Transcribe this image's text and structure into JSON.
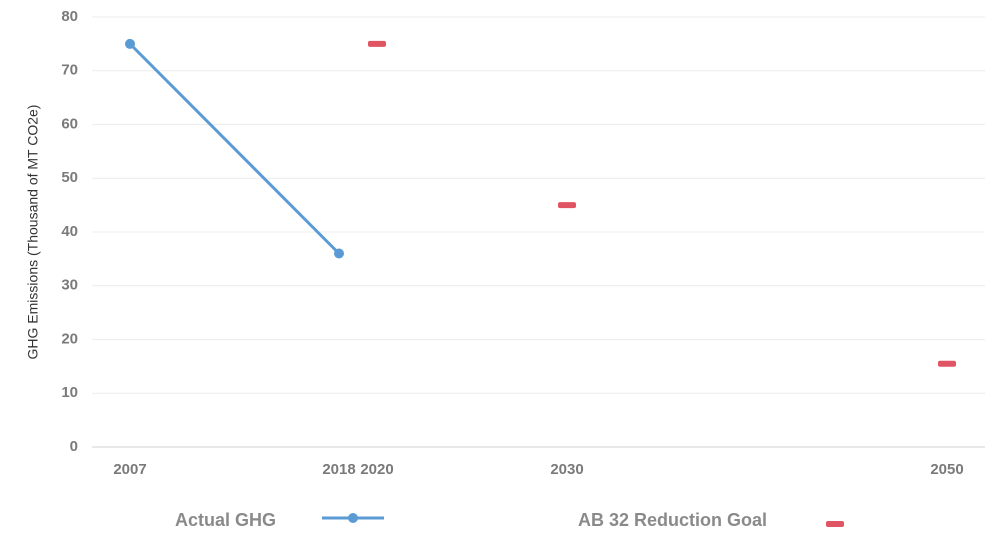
{
  "chart_data": {
    "type": "line",
    "y_label": "GHG Emissions (Thousand of MT CO2e)",
    "xlim": [
      2005,
      2052
    ],
    "xticks": [
      2007,
      2018,
      2020,
      2030,
      2050
    ],
    "ylim": [
      0,
      80
    ],
    "yticks": [
      0,
      10,
      20,
      30,
      40,
      50,
      60,
      70,
      80
    ],
    "grid": true,
    "legend": "bottom",
    "series": [
      {
        "name": "Actual GHG",
        "color": "#5b9bd5",
        "marker": "circle",
        "x": [
          2007,
          2018
        ],
        "values": [
          75,
          36
        ]
      },
      {
        "name": "AB 32 Reduction Goal",
        "color": "#e05563",
        "marker": "dash",
        "x": [
          2020,
          2030,
          2050
        ],
        "values": [
          75,
          45,
          15.5
        ]
      }
    ]
  }
}
